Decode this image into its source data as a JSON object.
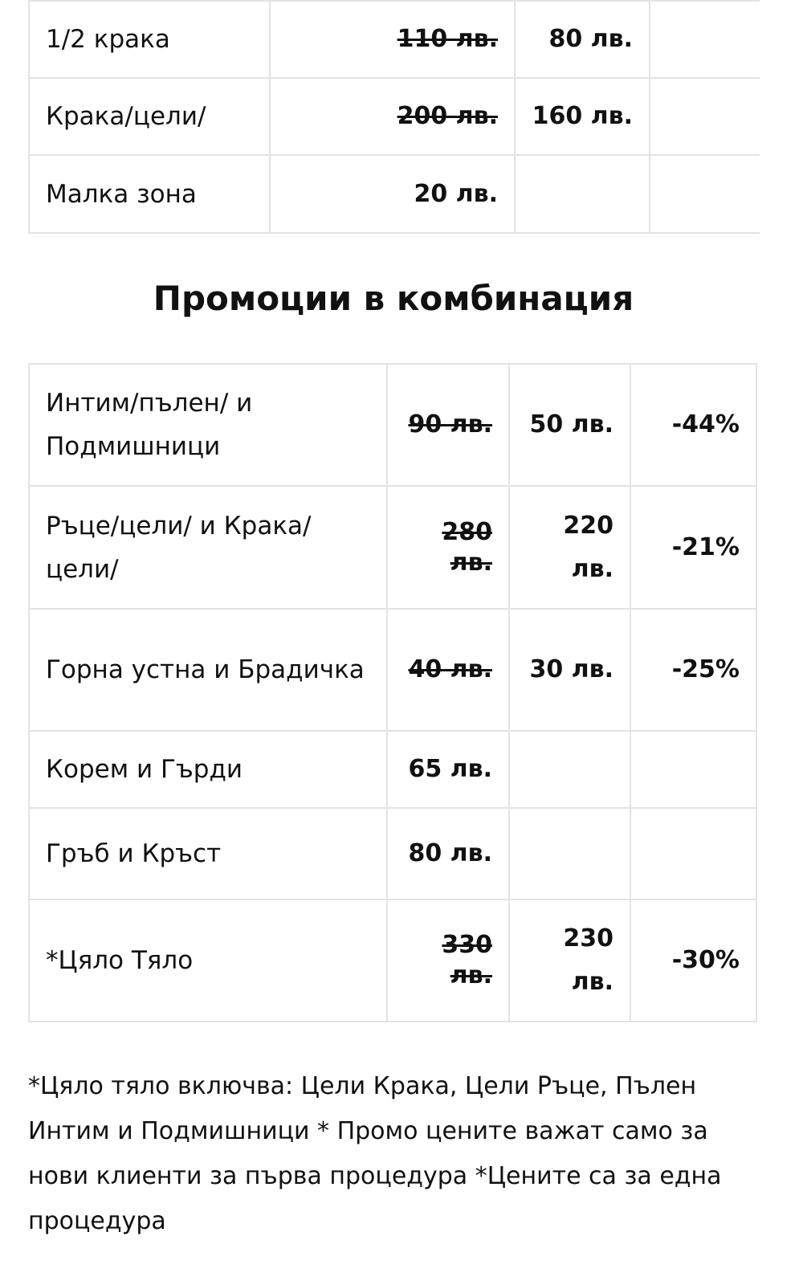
{
  "table1": {
    "rows": [
      {
        "label": "1/2 крака",
        "old_price": "110 лв.",
        "promo_price": "80 лв."
      },
      {
        "label": "Крака/цели/",
        "old_price": "200 лв.",
        "promo_price": "160 лв."
      },
      {
        "label": "Малка зона",
        "price": "20 лв."
      }
    ]
  },
  "heading": "Промоции в комбинация",
  "table2": {
    "rows": [
      {
        "label": "Интим/пълен/ и Подмишници",
        "old_price": "90 лв.",
        "promo_price": "50 лв.",
        "discount": "-44%"
      },
      {
        "label": "Ръце/цели/ и Крака/ цели/",
        "old_price": "280 лв.",
        "promo_price": "220 лв.",
        "discount": "-21%"
      },
      {
        "label": "Горна устна и Брадичка",
        "old_price": "40 лв.",
        "promo_price": "30 лв.",
        "discount": "-25%"
      },
      {
        "label": "Корем и Гърди",
        "price": "65 лв."
      },
      {
        "label": "Гръб и Кръст",
        "price": "80 лв."
      },
      {
        "label": "*Цяло Тяло",
        "old_price": "330 лв.",
        "promo_price": "230 лв.",
        "discount": "-30%"
      }
    ]
  },
  "note": "*Цяло тяло включва: Цели Крака, Цели Ръце, Пълен Интим и Подмишници * Промо цените важат само за нови клиенти за първа процедура *Цените са за една процедура"
}
